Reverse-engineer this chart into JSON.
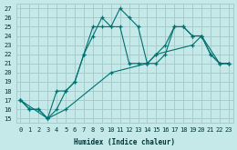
{
  "xlabel": "Humidex (Indice chaleur)",
  "bg_color": "#c5e8e8",
  "grid_color": "#a8cccc",
  "line_color": "#007070",
  "xlim": [
    -0.5,
    23.5
  ],
  "ylim": [
    14.5,
    27.5
  ],
  "xticks": [
    0,
    1,
    2,
    3,
    4,
    5,
    6,
    7,
    8,
    9,
    10,
    11,
    12,
    13,
    14,
    15,
    16,
    17,
    18,
    19,
    20,
    21,
    22,
    23
  ],
  "yticks": [
    15,
    16,
    17,
    18,
    19,
    20,
    21,
    22,
    23,
    24,
    25,
    26,
    27
  ],
  "line1": {
    "x": [
      0,
      1,
      2,
      3,
      4,
      5,
      6,
      7,
      8,
      9,
      10,
      11,
      12,
      13,
      14,
      15,
      16,
      17,
      18,
      19,
      20,
      21,
      22,
      23
    ],
    "y": [
      17,
      16,
      16,
      15,
      16,
      18,
      19,
      22,
      24,
      26,
      25,
      27,
      26,
      25,
      21,
      21,
      22,
      25,
      25,
      24,
      24,
      22,
      21,
      21
    ]
  },
  "line2": {
    "x": [
      0,
      1,
      2,
      3,
      4,
      5,
      6,
      7,
      8,
      9,
      10,
      11,
      12,
      13,
      14,
      15,
      16,
      17,
      18,
      19,
      20,
      21,
      22,
      23
    ],
    "y": [
      17,
      16,
      16,
      15,
      18,
      18,
      19,
      22,
      25,
      25,
      25,
      25,
      21,
      21,
      21,
      22,
      23,
      25,
      25,
      24,
      24,
      22,
      21,
      21
    ]
  },
  "line3": {
    "x": [
      0,
      3,
      5,
      10,
      14,
      15,
      19,
      20,
      22,
      23
    ],
    "y": [
      17,
      15,
      16,
      20,
      21,
      22,
      23,
      24,
      21,
      21
    ]
  }
}
